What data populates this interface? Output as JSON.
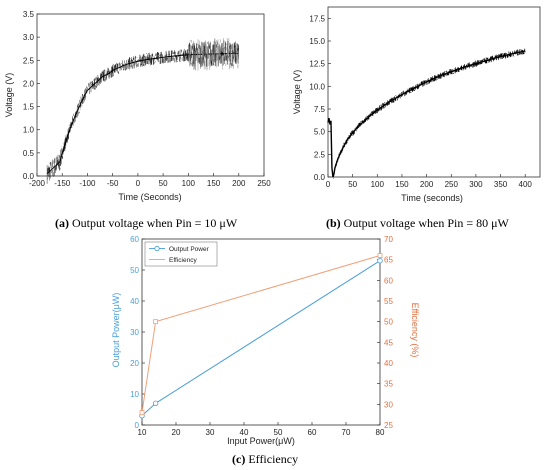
{
  "chart_data": [
    {
      "id": "a",
      "type": "line",
      "caption_letter": "(a)",
      "caption_text": " Output voltage when Pin = 10 μW",
      "xlabel": "Time (Seconds)",
      "ylabel": "Voltage (V)",
      "xlim": [
        -200,
        250
      ],
      "ylim": [
        0,
        3.5
      ],
      "xticks": [
        -200,
        -150,
        -100,
        -50,
        0,
        50,
        100,
        150,
        200,
        250
      ],
      "yticks": [
        0.0,
        0.5,
        1.0,
        1.5,
        2.0,
        2.5,
        3.0,
        3.5
      ],
      "series": [
        {
          "color": "#000000",
          "x": [
            -180,
            -170,
            -165,
            -155,
            -148,
            -140,
            -130,
            -120,
            -110,
            -100,
            -90,
            -80,
            -70,
            -60,
            -50,
            -40,
            -30,
            -20,
            -10,
            0,
            20,
            40,
            60,
            80,
            100,
            130,
            160,
            200
          ],
          "y": [
            0.05,
            0.15,
            0.2,
            0.3,
            0.55,
            0.85,
            1.15,
            1.4,
            1.65,
            1.85,
            1.95,
            2.05,
            2.15,
            2.2,
            2.28,
            2.33,
            2.38,
            2.42,
            2.45,
            2.48,
            2.52,
            2.55,
            2.58,
            2.6,
            2.62,
            2.63,
            2.64,
            2.65
          ]
        }
      ]
    },
    {
      "id": "b",
      "type": "line",
      "caption_letter": "(b)",
      "caption_text": " Output voltage when Pin = 80 μW",
      "xlabel": "Time (seconds)",
      "ylabel": "Voltage (V)",
      "xlim": [
        0,
        430
      ],
      "ylim": [
        0,
        18.75
      ],
      "xticks": [
        0,
        50,
        100,
        150,
        200,
        250,
        300,
        350,
        400
      ],
      "yticks": [
        0.0,
        2.5,
        5.0,
        7.5,
        10.0,
        12.5,
        15.0,
        17.5
      ],
      "series": [
        {
          "color": "#000000",
          "x": [
            0,
            2,
            4,
            6,
            8,
            10,
            12,
            14,
            20,
            30,
            40,
            60,
            80,
            100,
            125,
            150,
            175,
            200,
            225,
            250,
            275,
            300,
            325,
            350,
            375,
            400
          ],
          "y": [
            6.0,
            6.5,
            5.8,
            6.2,
            1.0,
            0.0,
            0.3,
            1.0,
            2.0,
            3.2,
            4.2,
            5.5,
            6.5,
            7.4,
            8.3,
            9.1,
            9.8,
            10.5,
            11.1,
            11.6,
            12.1,
            12.5,
            12.9,
            13.3,
            13.6,
            13.9
          ]
        }
      ]
    },
    {
      "id": "c",
      "type": "line",
      "caption_letter": "(c)",
      "caption_text": " Efficiency",
      "xlabel": "Input Power(μW)",
      "ylabel": "Output Power(μW)",
      "y2label": "Efficiency (%)",
      "xlim": [
        10,
        80
      ],
      "ylim": [
        0,
        60
      ],
      "y2lim": [
        25,
        70
      ],
      "xticks": [
        10,
        20,
        30,
        40,
        50,
        60,
        70,
        80
      ],
      "yticks": [
        0,
        10,
        20,
        30,
        40,
        50,
        60
      ],
      "y2ticks": [
        25,
        30,
        35,
        40,
        45,
        50,
        55,
        60,
        65,
        70
      ],
      "legend": "top-left",
      "series": [
        {
          "name": "Output Power",
          "axis": "left",
          "color": "#4a9fd8",
          "marker": "circle",
          "x": [
            10,
            14,
            80
          ],
          "y": [
            3,
            7,
            53
          ]
        },
        {
          "name": "Efficiency",
          "axis": "right",
          "color": "#f0a078",
          "marker": "square",
          "x": [
            10,
            14,
            80
          ],
          "y": [
            28,
            50,
            66
          ]
        }
      ]
    }
  ]
}
